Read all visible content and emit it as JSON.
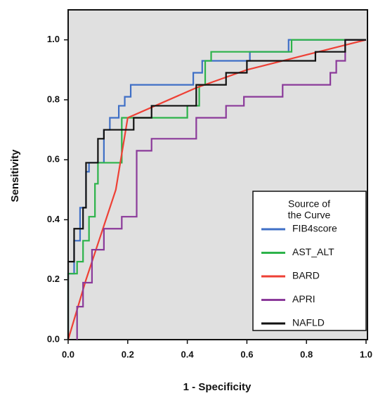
{
  "chart_data": {
    "type": "line",
    "xlabel": "1 - Specificity",
    "ylabel": "Sensitivity",
    "legend_title": [
      "Source of",
      "the Curve"
    ],
    "legend_position": "lower right",
    "xlim": [
      0,
      1.0
    ],
    "ylim": [
      0,
      1.1
    ],
    "xticks": [
      {
        "value": 0,
        "label": "0.0"
      },
      {
        "value": 0.2,
        "label": "0.2"
      },
      {
        "value": 0.4,
        "label": "0.4"
      },
      {
        "value": 0.6,
        "label": "0.6"
      },
      {
        "value": 0.8,
        "label": "0.8"
      },
      {
        "value": 1.0,
        "label": "1.0"
      }
    ],
    "yticks": [
      {
        "value": 0,
        "label": "0.0"
      },
      {
        "value": 0.2,
        "label": "0.2"
      },
      {
        "value": 0.4,
        "label": "0.4"
      },
      {
        "value": 0.6,
        "label": "0.6"
      },
      {
        "value": 0.8,
        "label": "0.8"
      },
      {
        "value": 1.0,
        "label": "1.0"
      }
    ],
    "series": [
      {
        "name": "FIB4score",
        "color": "#3f6fc6",
        "x": [
          0,
          0,
          0.02,
          0.02,
          0.04,
          0.04,
          0.06,
          0.06,
          0.07,
          0.07,
          0.12,
          0.12,
          0.14,
          0.14,
          0.17,
          0.17,
          0.19,
          0.19,
          0.21,
          0.21,
          0.42,
          0.42,
          0.45,
          0.45,
          0.61,
          0.61,
          0.74,
          0.74,
          1
        ],
        "values": [
          0,
          0.22,
          0.22,
          0.33,
          0.33,
          0.44,
          0.44,
          0.56,
          0.56,
          0.59,
          0.59,
          0.7,
          0.7,
          0.74,
          0.74,
          0.78,
          0.78,
          0.81,
          0.81,
          0.85,
          0.85,
          0.89,
          0.89,
          0.93,
          0.93,
          0.96,
          0.96,
          1.0,
          1.0
        ]
      },
      {
        "name": "AST_ALT",
        "color": "#2db34a",
        "x": [
          0,
          0,
          0.03,
          0.03,
          0.05,
          0.05,
          0.07,
          0.07,
          0.09,
          0.09,
          0.1,
          0.1,
          0.18,
          0.18,
          0.4,
          0.4,
          0.44,
          0.44,
          0.46,
          0.46,
          0.48,
          0.48,
          0.75,
          0.75,
          1
        ],
        "values": [
          0,
          0.22,
          0.22,
          0.26,
          0.26,
          0.33,
          0.33,
          0.41,
          0.41,
          0.52,
          0.52,
          0.59,
          0.59,
          0.74,
          0.74,
          0.78,
          0.78,
          0.85,
          0.85,
          0.93,
          0.93,
          0.96,
          0.96,
          1.0,
          1.0
        ]
      },
      {
        "name": "BARD",
        "color": "#ee4035",
        "x": [
          0,
          0.06,
          0.16,
          0.2,
          0.43,
          0.6,
          0.8,
          1
        ],
        "values": [
          0,
          0.2,
          0.5,
          0.74,
          0.84,
          0.9,
          0.95,
          1.0
        ]
      },
      {
        "name": "APRI",
        "color": "#8b3a9a",
        "x": [
          0.03,
          0.03,
          0.05,
          0.05,
          0.08,
          0.08,
          0.12,
          0.12,
          0.18,
          0.18,
          0.23,
          0.23,
          0.28,
          0.28,
          0.43,
          0.43,
          0.53,
          0.53,
          0.59,
          0.59,
          0.72,
          0.72,
          0.88,
          0.88,
          0.9,
          0.9,
          0.93,
          0.93,
          1
        ],
        "values": [
          0,
          0.11,
          0.11,
          0.19,
          0.19,
          0.3,
          0.3,
          0.37,
          0.37,
          0.41,
          0.41,
          0.63,
          0.63,
          0.67,
          0.67,
          0.74,
          0.74,
          0.78,
          0.78,
          0.81,
          0.81,
          0.85,
          0.85,
          0.89,
          0.89,
          0.93,
          0.93,
          1.0,
          1.0
        ]
      },
      {
        "name": "NAFLD",
        "color": "#111111",
        "x": [
          0,
          0,
          0.02,
          0.02,
          0.05,
          0.05,
          0.06,
          0.06,
          0.1,
          0.1,
          0.12,
          0.12,
          0.22,
          0.22,
          0.28,
          0.28,
          0.43,
          0.43,
          0.53,
          0.53,
          0.6,
          0.6,
          0.83,
          0.83,
          0.93,
          0.93,
          1
        ],
        "values": [
          0,
          0.26,
          0.26,
          0.37,
          0.37,
          0.44,
          0.44,
          0.59,
          0.59,
          0.67,
          0.67,
          0.7,
          0.7,
          0.74,
          0.74,
          0.78,
          0.78,
          0.85,
          0.85,
          0.89,
          0.89,
          0.93,
          0.93,
          0.96,
          0.96,
          1.0,
          1.0
        ]
      }
    ]
  }
}
